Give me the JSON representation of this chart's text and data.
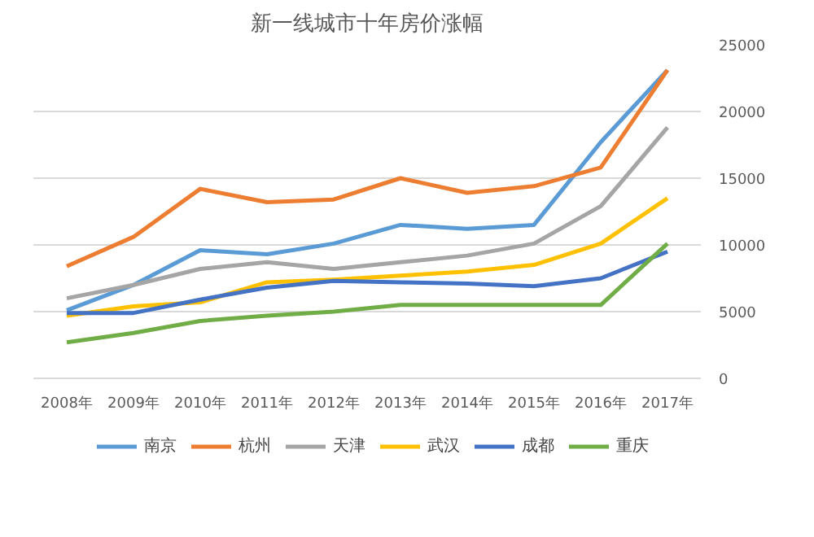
{
  "chart_data": {
    "type": "line",
    "title": "新一线城市十年房价涨幅",
    "categories": [
      "2008年",
      "2009年",
      "2010年",
      "2011年",
      "2012年",
      "2013年",
      "2014年",
      "2015年",
      "2016年",
      "2017年"
    ],
    "series": [
      {
        "name": "南京",
        "color": "#5b9bd5",
        "values": [
          5100,
          7000,
          9600,
          9300,
          10100,
          11500,
          11200,
          11500,
          17700,
          23100
        ]
      },
      {
        "name": "杭州",
        "color": "#ed7d31",
        "values": [
          8400,
          10600,
          14200,
          13200,
          13400,
          15000,
          13900,
          14400,
          15800,
          23100
        ]
      },
      {
        "name": "天津",
        "color": "#a5a5a5",
        "values": [
          6000,
          7000,
          8200,
          8700,
          8200,
          8700,
          9200,
          10100,
          12900,
          18800
        ]
      },
      {
        "name": "武汉",
        "color": "#ffc000",
        "values": [
          4700,
          5400,
          5700,
          7200,
          7400,
          7700,
          8000,
          8500,
          10100,
          13500
        ]
      },
      {
        "name": "成都",
        "color": "#4472c4",
        "values": [
          4900,
          4900,
          5900,
          6800,
          7300,
          7200,
          7100,
          6900,
          7500,
          9500
        ]
      },
      {
        "name": "重庆",
        "color": "#70ad47",
        "values": [
          2700,
          3400,
          4300,
          4700,
          5000,
          5500,
          5500,
          5500,
          5500,
          10100
        ]
      }
    ],
    "ylim": [
      0,
      25000
    ],
    "yticks": [
      0,
      5000,
      10000,
      15000,
      20000,
      25000
    ],
    "grid": "y",
    "legend": "bottom"
  }
}
